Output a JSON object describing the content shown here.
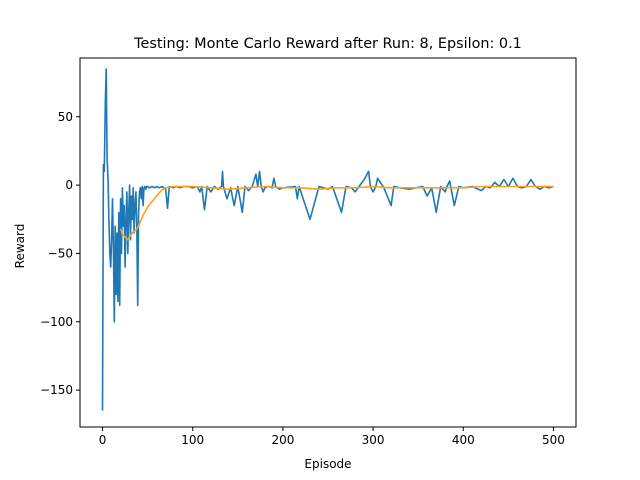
{
  "chart_data": {
    "type": "line",
    "title": "Testing: Monte Carlo Reward after Run: 8, Epsilon: 0.1",
    "xlabel": "Episode",
    "ylabel": "Reward",
    "xlim": [
      -25,
      525
    ],
    "ylim": [
      -177,
      93
    ],
    "xticks": [
      0,
      100,
      200,
      300,
      400,
      500
    ],
    "yticks": [
      -150,
      -100,
      -50,
      0,
      50
    ],
    "grid": false,
    "colors": {
      "reward": "#1f77b4",
      "moving_average": "#ff9f1c"
    },
    "series": [
      {
        "key": "reward",
        "points": [
          [
            0,
            -165
          ],
          [
            1,
            15
          ],
          [
            2,
            10
          ],
          [
            3,
            60
          ],
          [
            4,
            85
          ],
          [
            5,
            20
          ],
          [
            6,
            5
          ],
          [
            7,
            -25
          ],
          [
            8,
            -50
          ],
          [
            9,
            -60
          ],
          [
            10,
            -40
          ],
          [
            11,
            -10
          ],
          [
            12,
            -45
          ],
          [
            13,
            -100
          ],
          [
            14,
            -30
          ],
          [
            15,
            -80
          ],
          [
            16,
            -35
          ],
          [
            17,
            -85
          ],
          [
            18,
            -20
          ],
          [
            19,
            -88
          ],
          [
            20,
            -10
          ],
          [
            21,
            -50
          ],
          [
            22,
            -2
          ],
          [
            23,
            -30
          ],
          [
            24,
            -15
          ],
          [
            25,
            -60
          ],
          [
            26,
            -25
          ],
          [
            27,
            -5
          ],
          [
            28,
            -50
          ],
          [
            29,
            -20
          ],
          [
            30,
            0
          ],
          [
            31,
            -40
          ],
          [
            32,
            -8
          ],
          [
            33,
            -25
          ],
          [
            34,
            -2
          ],
          [
            35,
            -35
          ],
          [
            36,
            -15
          ],
          [
            37,
            -5
          ],
          [
            38,
            -30
          ],
          [
            39,
            -88
          ],
          [
            40,
            -20
          ],
          [
            41,
            -5
          ],
          [
            42,
            -2
          ],
          [
            43,
            -10
          ],
          [
            44,
            -1
          ],
          [
            45,
            -15
          ],
          [
            46,
            -2
          ],
          [
            47,
            -1
          ],
          [
            48,
            -3
          ],
          [
            49,
            -1
          ],
          [
            50,
            -1
          ],
          [
            52,
            -2
          ],
          [
            55,
            -1
          ],
          [
            58,
            -2
          ],
          [
            60,
            -1
          ],
          [
            63,
            -2
          ],
          [
            66,
            -1
          ],
          [
            70,
            -3
          ],
          [
            72,
            -17
          ],
          [
            74,
            -1
          ],
          [
            78,
            -2
          ],
          [
            82,
            -1
          ],
          [
            86,
            -2
          ],
          [
            90,
            -1
          ],
          [
            95,
            -1
          ],
          [
            100,
            -2
          ],
          [
            105,
            -1
          ],
          [
            108,
            -5
          ],
          [
            110,
            -1
          ],
          [
            113,
            -18
          ],
          [
            116,
            -1
          ],
          [
            120,
            -5
          ],
          [
            124,
            -1
          ],
          [
            128,
            -3
          ],
          [
            132,
            -1
          ],
          [
            133,
            10
          ],
          [
            134,
            -1
          ],
          [
            138,
            -10
          ],
          [
            142,
            -2
          ],
          [
            146,
            -15
          ],
          [
            150,
            -1
          ],
          [
            155,
            -20
          ],
          [
            158,
            -1
          ],
          [
            162,
            -4
          ],
          [
            166,
            -1
          ],
          [
            170,
            8
          ],
          [
            172,
            -1
          ],
          [
            174,
            10
          ],
          [
            176,
            -1
          ],
          [
            178,
            -5
          ],
          [
            180,
            -2
          ],
          [
            184,
            -1
          ],
          [
            188,
            -2
          ],
          [
            190,
            5
          ],
          [
            192,
            -1
          ],
          [
            196,
            -3
          ],
          [
            200,
            -2
          ],
          [
            214,
            -1
          ],
          [
            216,
            -10
          ],
          [
            218,
            -1
          ],
          [
            230,
            -25
          ],
          [
            240,
            -1
          ],
          [
            250,
            -3
          ],
          [
            255,
            -1
          ],
          [
            265,
            -20
          ],
          [
            270,
            -1
          ],
          [
            276,
            -2
          ],
          [
            280,
            -5
          ],
          [
            290,
            4
          ],
          [
            295,
            10
          ],
          [
            297,
            -1
          ],
          [
            300,
            -5
          ],
          [
            303,
            -1
          ],
          [
            305,
            5
          ],
          [
            312,
            -2
          ],
          [
            320,
            -15
          ],
          [
            323,
            -1
          ],
          [
            330,
            -2
          ],
          [
            340,
            -3
          ],
          [
            355,
            -1
          ],
          [
            360,
            -8
          ],
          [
            365,
            -2
          ],
          [
            370,
            -20
          ],
          [
            375,
            -1
          ],
          [
            380,
            -5
          ],
          [
            382,
            -1
          ],
          [
            385,
            3
          ],
          [
            390,
            -15
          ],
          [
            395,
            -1
          ],
          [
            400,
            -2
          ],
          [
            410,
            -1
          ],
          [
            420,
            -4
          ],
          [
            425,
            -1
          ],
          [
            430,
            -2
          ],
          [
            435,
            2
          ],
          [
            440,
            -1
          ],
          [
            445,
            4
          ],
          [
            450,
            -1
          ],
          [
            455,
            5
          ],
          [
            460,
            -1
          ],
          [
            465,
            -2
          ],
          [
            470,
            -1
          ],
          [
            475,
            4
          ],
          [
            480,
            -1
          ],
          [
            485,
            -3
          ],
          [
            490,
            -1
          ],
          [
            495,
            -2
          ],
          [
            500,
            -1
          ]
        ]
      },
      {
        "key": "moving_average",
        "points": [
          [
            20,
            -32
          ],
          [
            22,
            -36
          ],
          [
            25,
            -38
          ],
          [
            28,
            -40
          ],
          [
            30,
            -38
          ],
          [
            33,
            -35
          ],
          [
            37,
            -33
          ],
          [
            40,
            -30
          ],
          [
            45,
            -22
          ],
          [
            50,
            -16
          ],
          [
            55,
            -12
          ],
          [
            60,
            -8
          ],
          [
            65,
            -4
          ],
          [
            70,
            -2
          ],
          [
            80,
            -1
          ],
          [
            90,
            -1
          ],
          [
            100,
            -1
          ],
          [
            120,
            -2
          ],
          [
            140,
            -3
          ],
          [
            160,
            -2
          ],
          [
            180,
            -1
          ],
          [
            200,
            -2
          ],
          [
            220,
            -2
          ],
          [
            240,
            -3
          ],
          [
            260,
            -2
          ],
          [
            280,
            -2
          ],
          [
            300,
            -1
          ],
          [
            320,
            -2
          ],
          [
            340,
            -2
          ],
          [
            360,
            -2
          ],
          [
            380,
            -2
          ],
          [
            400,
            -2
          ],
          [
            420,
            -1
          ],
          [
            440,
            -1
          ],
          [
            460,
            -1
          ],
          [
            480,
            -1
          ],
          [
            500,
            -1
          ]
        ]
      }
    ]
  }
}
